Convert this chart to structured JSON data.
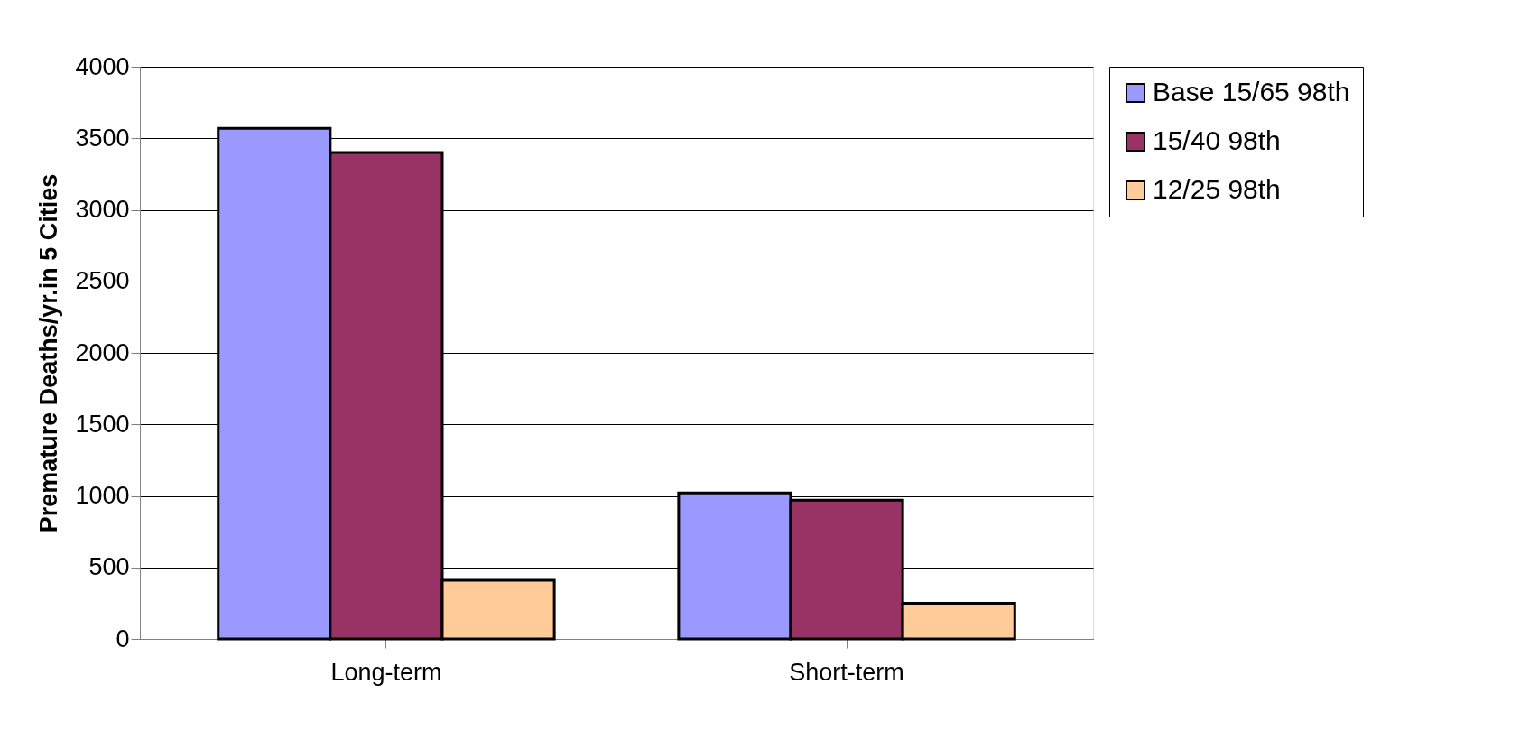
{
  "chart_data": {
    "type": "bar",
    "ylabel": "Premature Deaths/yr.in 5 Cities",
    "categories": [
      "Long-term",
      "Short-term"
    ],
    "series": [
      {
        "name": "Base 15/65 98th",
        "color": "#9999ff",
        "values": [
          3570,
          1020
        ]
      },
      {
        "name": "15/40 98th",
        "color": "#993366",
        "values": [
          3400,
          970
        ]
      },
      {
        "name": "12/25 98th",
        "color": "#ffcc99",
        "values": [
          410,
          250
        ]
      }
    ],
    "ylim": [
      0,
      4000
    ],
    "yticks": [
      0,
      500,
      1000,
      1500,
      2000,
      2500,
      3000,
      3500,
      4000
    ],
    "grid": "y",
    "legend": "right"
  }
}
